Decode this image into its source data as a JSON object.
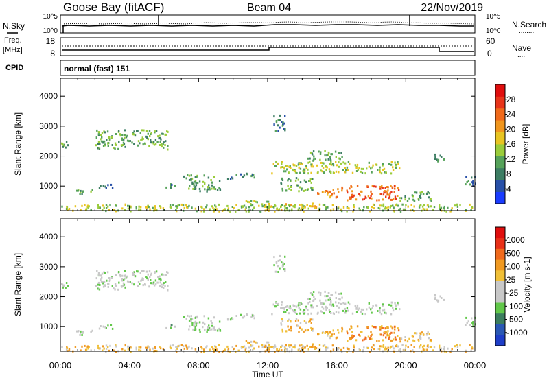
{
  "header": {
    "station": "Goose Bay (fitACF)",
    "beam": "Beam 04",
    "date": "22/Nov/2019"
  },
  "noise_panel": {
    "left_label": "N.Sky",
    "left_ticks": [
      "10^5",
      "10^0"
    ],
    "right_ticks": [
      "10^5",
      "10^0"
    ],
    "right_label": "N.Search",
    "right_legend_line": "........"
  },
  "freq_panel": {
    "left_label_line1": "Freq.",
    "left_label_line2": "[MHz]",
    "left_ticks": [
      "18",
      "8"
    ],
    "right_ticks": [
      "60",
      "0"
    ],
    "right_label": "Nave",
    "right_legend_line": "....",
    "cpid_label": "CPID",
    "cpid_value": "normal (fast) 151"
  },
  "x_axis": {
    "label": "Time UT",
    "ticks": [
      "00:00",
      "04:00",
      "08:00",
      "12:00",
      "16:00",
      "20:00",
      "00:00"
    ]
  },
  "chart_data": [
    {
      "type": "heatmap",
      "panel": "power",
      "ylabel": "Slant Range [km]",
      "yticks": [
        1000,
        2000,
        3000,
        4000
      ],
      "ylim": [
        180,
        4600
      ],
      "xlim_hours": [
        0,
        24
      ],
      "colorbar": {
        "label": "Power [dB]",
        "ticks": [
          "4",
          "8",
          "12",
          "16",
          "20",
          "24",
          "28"
        ],
        "colors": [
          "#1a3cff",
          "#2850a8",
          "#3d7d63",
          "#56a25a",
          "#9acc3a",
          "#e8c421",
          "#f0961e",
          "#f06a1b",
          "#e8341a",
          "#e00e0e"
        ]
      },
      "regions": [
        {
          "t": [
            0.0,
            0.4
          ],
          "r": [
            2300,
            2500
          ],
          "v": 3
        },
        {
          "t": [
            2.0,
            6.2
          ],
          "r": [
            2250,
            2900
          ],
          "v": 3
        },
        {
          "t": [
            0.9,
            1.9
          ],
          "r": [
            750,
            1000
          ],
          "v": 3
        },
        {
          "t": [
            2.1,
            3.1
          ],
          "r": [
            950,
            1100
          ],
          "v": 2
        },
        {
          "t": [
            6.0,
            6.6
          ],
          "r": [
            950,
            1150
          ],
          "v": 2
        },
        {
          "t": [
            7.1,
            9.3
          ],
          "r": [
            850,
            1400
          ],
          "v": 3
        },
        {
          "t": [
            9.6,
            11.2
          ],
          "r": [
            1250,
            1450
          ],
          "v": 2
        },
        {
          "t": [
            12.3,
            13.0
          ],
          "r": [
            2800,
            3400
          ],
          "v": 2
        },
        {
          "t": [
            12.2,
            19.6
          ],
          "r": [
            1450,
            1850
          ],
          "v": 4
        },
        {
          "t": [
            14.3,
            16.3
          ],
          "r": [
            1850,
            2200
          ],
          "v": 3
        },
        {
          "t": [
            16.5,
            19.7
          ],
          "r": [
            550,
            1050
          ],
          "v": 7
        },
        {
          "t": [
            14.8,
            16.3
          ],
          "r": [
            650,
            1000
          ],
          "v": 6
        },
        {
          "t": [
            12.7,
            14.7
          ],
          "r": [
            850,
            1300
          ],
          "v": 3
        },
        {
          "t": [
            10.4,
            12.0
          ],
          "r": [
            320,
            560
          ],
          "v": 4
        },
        {
          "t": [
            12.0,
            15.0
          ],
          "r": [
            220,
            450
          ],
          "v": 5
        },
        {
          "t": [
            19.5,
            21.5
          ],
          "r": [
            520,
            850
          ],
          "v": 3
        },
        {
          "t": [
            21.5,
            22.2
          ],
          "r": [
            1850,
            2100
          ],
          "v": 2
        },
        {
          "t": [
            23.4,
            24.0
          ],
          "r": [
            1000,
            1450
          ],
          "v": 2
        },
        {
          "t": [
            0.0,
            24.0
          ],
          "r": [
            180,
            420
          ],
          "v": 4
        }
      ]
    },
    {
      "type": "heatmap",
      "panel": "velocity",
      "ylabel": "Slant Range [km]",
      "yticks": [
        1000,
        2000,
        3000,
        4000
      ],
      "ylim": [
        180,
        4600
      ],
      "xlim_hours": [
        0,
        24
      ],
      "colorbar": {
        "label": "Velocity [m s-1]",
        "ticks": [
          "1000",
          "500",
          "100",
          "25",
          "-25",
          "-100",
          "-500",
          "-1000"
        ],
        "colors": [
          "#1e3ec8",
          "#2a58b4",
          "#3b7d5e",
          "#62c84a",
          "#c8c8c8",
          "#c8c8c8",
          "#f0c038",
          "#f09a22",
          "#f06a1c",
          "#e83018",
          "#e00e0e"
        ]
      },
      "regions": [
        {
          "t": [
            0.0,
            0.4
          ],
          "r": [
            2300,
            2500
          ],
          "v": 4
        },
        {
          "t": [
            2.0,
            6.2
          ],
          "r": [
            2250,
            2900
          ],
          "v": 4
        },
        {
          "t": [
            0.9,
            1.9
          ],
          "r": [
            750,
            1000
          ],
          "v": 4
        },
        {
          "t": [
            2.1,
            3.1
          ],
          "r": [
            950,
            1100
          ],
          "v": 4
        },
        {
          "t": [
            6.0,
            6.6
          ],
          "r": [
            950,
            1150
          ],
          "v": 3
        },
        {
          "t": [
            7.1,
            9.3
          ],
          "r": [
            850,
            1400
          ],
          "v": 4
        },
        {
          "t": [
            9.6,
            11.2
          ],
          "r": [
            1250,
            1450
          ],
          "v": 4
        },
        {
          "t": [
            12.3,
            13.0
          ],
          "r": [
            2800,
            3400
          ],
          "v": 4
        },
        {
          "t": [
            12.2,
            19.6
          ],
          "r": [
            1450,
            1850
          ],
          "v": 4
        },
        {
          "t": [
            14.3,
            16.3
          ],
          "r": [
            1850,
            2200
          ],
          "v": 4
        },
        {
          "t": [
            16.5,
            19.7
          ],
          "r": [
            550,
            1050
          ],
          "v": 7
        },
        {
          "t": [
            14.8,
            16.3
          ],
          "r": [
            650,
            1000
          ],
          "v": 6
        },
        {
          "t": [
            12.7,
            14.7
          ],
          "r": [
            850,
            1300
          ],
          "v": 6
        },
        {
          "t": [
            10.4,
            12.0
          ],
          "r": [
            320,
            560
          ],
          "v": 6
        },
        {
          "t": [
            12.0,
            15.0
          ],
          "r": [
            220,
            450
          ],
          "v": 6
        },
        {
          "t": [
            19.5,
            21.5
          ],
          "r": [
            520,
            850
          ],
          "v": 6
        },
        {
          "t": [
            21.5,
            22.2
          ],
          "r": [
            1850,
            2100
          ],
          "v": 4
        },
        {
          "t": [
            23.4,
            24.0
          ],
          "r": [
            1000,
            1450
          ],
          "v": 4
        },
        {
          "t": [
            0.0,
            24.0
          ],
          "r": [
            180,
            420
          ],
          "v": 6
        }
      ]
    }
  ]
}
